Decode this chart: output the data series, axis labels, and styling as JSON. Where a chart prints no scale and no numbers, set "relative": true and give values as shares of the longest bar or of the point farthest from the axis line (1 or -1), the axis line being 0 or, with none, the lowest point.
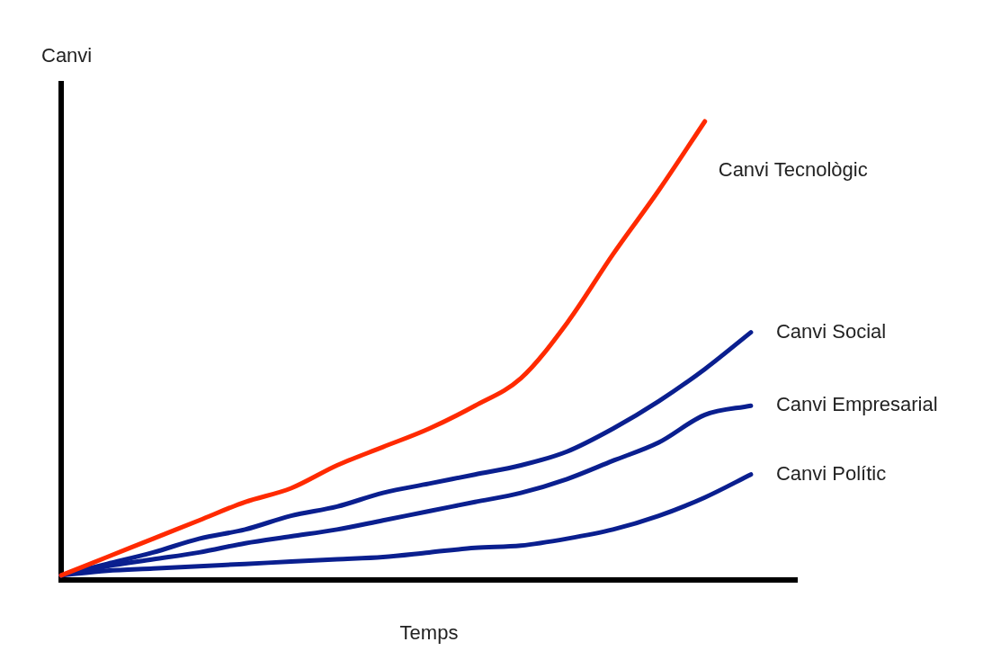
{
  "chart_data": {
    "type": "line",
    "relative": true,
    "xlabel": "Temps",
    "ylabel": "Canvi",
    "legend": false,
    "marker": "none",
    "line_style": "solid",
    "categories": [
      null,
      null,
      null,
      null,
      null,
      null,
      null,
      null,
      null,
      null,
      null,
      null,
      null,
      null,
      null,
      null,
      null
    ],
    "series": [
      {
        "name": "Canvi Tecnològic",
        "color": "#ff2a00",
        "values": [
          0.01,
          0.05,
          0.09,
          0.13,
          0.17,
          0.2,
          0.25,
          0.29,
          0.33,
          0.38,
          0.44,
          0.56,
          0.71,
          0.85,
          1,
          null,
          null
        ]
      },
      {
        "name": "Canvi Social",
        "color": "#0a1f8f",
        "values": [
          0.01,
          0.035,
          0.06,
          0.09,
          0.11,
          0.14,
          0.16,
          0.19,
          0.21,
          0.23,
          0.25,
          0.28,
          0.33,
          0.39,
          0.46,
          0.54,
          null
        ]
      },
      {
        "name": "Canvi Empresarial",
        "color": "#0a1f8f",
        "values": [
          0.01,
          0.03,
          0.045,
          0.06,
          0.08,
          0.095,
          0.11,
          0.13,
          0.15,
          0.17,
          0.19,
          0.22,
          0.26,
          0.3,
          0.36,
          0.38,
          null
        ]
      },
      {
        "name": "Canvi Polític",
        "color": "#0a1f8f",
        "values": [
          0.01,
          0.02,
          0.025,
          0.03,
          0.035,
          0.04,
          0.045,
          0.05,
          0.06,
          0.07,
          0.075,
          0.09,
          0.11,
          0.14,
          0.18,
          0.23,
          null
        ]
      }
    ]
  }
}
